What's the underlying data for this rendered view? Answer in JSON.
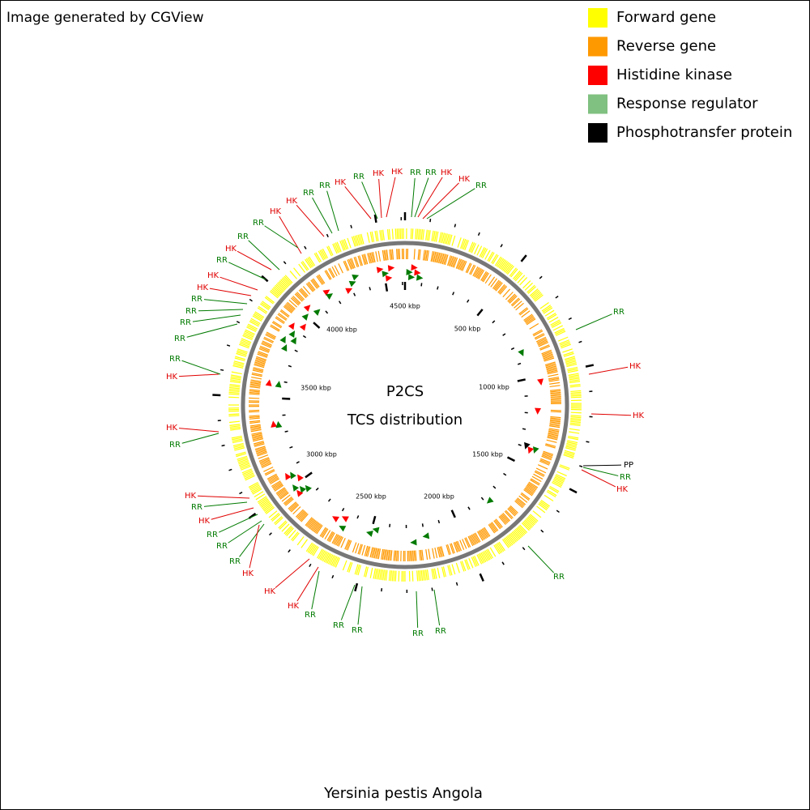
{
  "header": {
    "credit": "Image generated by CGView"
  },
  "legend": [
    {
      "label": "Forward gene",
      "color": "#ffff00"
    },
    {
      "label": "Reverse gene",
      "color": "#ff9900"
    },
    {
      "label": "Histidine kinase",
      "color": "#ff0000"
    },
    {
      "label": "Response regulator",
      "color": "#80c080"
    },
    {
      "label": "Phosphotransfer protein",
      "color": "#000000"
    }
  ],
  "center": {
    "title": "P2CS",
    "subtitle": "TCS distribution"
  },
  "ruler_labels": [
    "4500 kbp",
    "500 kbp",
    "1000 kbp",
    "1500 kbp",
    "2000 kbp",
    "2500 kbp",
    "3000 kbp",
    "3500 kbp",
    "4000 kbp"
  ],
  "features": [
    {
      "label": "HK",
      "color": "#e00000"
    },
    {
      "label": "RR",
      "color": "#007a00"
    },
    {
      "label": "HK",
      "color": "#e00000"
    },
    {
      "label": "HK",
      "color": "#e00000"
    },
    {
      "label": "RR",
      "color": "#007a00"
    },
    {
      "label": "RR",
      "color": "#007a00"
    },
    {
      "label": "HK",
      "color": "#e00000"
    },
    {
      "label": "HK",
      "color": "#e00000"
    },
    {
      "label": "RR",
      "color": "#007a00"
    },
    {
      "label": "RR",
      "color": "#007a00"
    },
    {
      "label": "RR",
      "color": "#007a00"
    },
    {
      "label": "HK",
      "color": "#e00000"
    },
    {
      "label": "HK",
      "color": "#e00000"
    },
    {
      "label": "RR",
      "color": "#007a00"
    },
    {
      "label": "RR",
      "color": "#007a00"
    },
    {
      "label": "HK",
      "color": "#e00000"
    },
    {
      "label": "RR",
      "color": "#007a00"
    },
    {
      "label": "HK",
      "color": "#e00000"
    },
    {
      "label": "HK",
      "color": "#e00000"
    },
    {
      "label": "RR",
      "color": "#007a00"
    },
    {
      "label": "RR",
      "color": "#007a00"
    },
    {
      "label": "RR",
      "color": "#007a00"
    },
    {
      "label": "RR",
      "color": "#007a00"
    },
    {
      "label": "RR",
      "color": "#007a00"
    },
    {
      "label": "HK",
      "color": "#e00000"
    },
    {
      "label": "HK",
      "color": "#e00000"
    },
    {
      "label": "RR",
      "color": "#007a00"
    },
    {
      "label": "HK",
      "color": "#e00000"
    },
    {
      "label": "RR",
      "color": "#007a00"
    },
    {
      "label": "HK",
      "color": "#e00000"
    },
    {
      "label": "RR",
      "color": "#007a00"
    },
    {
      "label": "RR",
      "color": "#007a00"
    },
    {
      "label": "RR",
      "color": "#007a00"
    },
    {
      "label": "HK",
      "color": "#e00000"
    },
    {
      "label": "HK",
      "color": "#e00000"
    },
    {
      "label": "HK",
      "color": "#e00000"
    },
    {
      "label": "RR",
      "color": "#007a00"
    },
    {
      "label": "RR",
      "color": "#007a00"
    },
    {
      "label": "RR",
      "color": "#007a00"
    },
    {
      "label": "RR",
      "color": "#007a00"
    },
    {
      "label": "RR",
      "color": "#007a00"
    },
    {
      "label": "RR",
      "color": "#007a00"
    },
    {
      "label": "HK",
      "color": "#e00000"
    },
    {
      "label": "HK",
      "color": "#e00000"
    },
    {
      "label": "PP",
      "color": "#000000"
    },
    {
      "label": "RR",
      "color": "#007a00"
    },
    {
      "label": "HK",
      "color": "#e00000"
    },
    {
      "label": "RR",
      "color": "#007a00"
    }
  ],
  "footer": {
    "organism": "Yersinia pestis Angola"
  }
}
